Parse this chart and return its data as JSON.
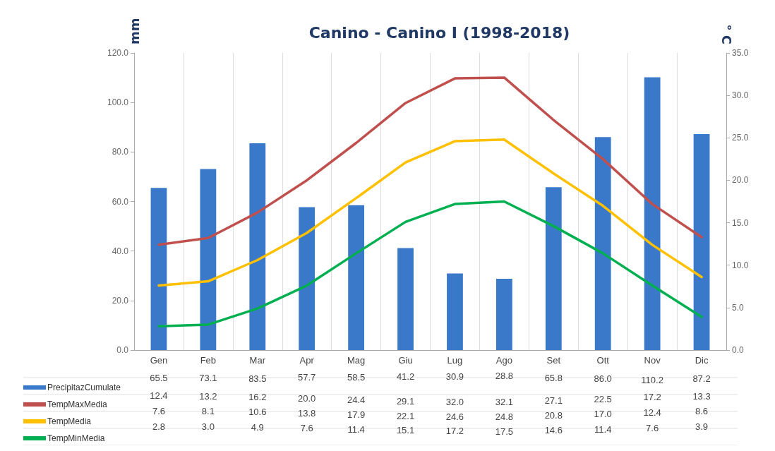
{
  "chart_data": {
    "type": "bar",
    "title": "Canino - Canino I (1998-2018)",
    "ylabel": "mm",
    "y2label": "° C",
    "categories": [
      "Gen",
      "Feb",
      "Mar",
      "Apr",
      "Mag",
      "Giu",
      "Lug",
      "Ago",
      "Set",
      "Ott",
      "Nov",
      "Dic"
    ],
    "series": [
      {
        "name": "PrecipitazCumulate",
        "color": "#3a78c9",
        "values": [
          65.5,
          73.1,
          83.5,
          57.7,
          58.5,
          41.2,
          30.9,
          28.8,
          65.8,
          86.0,
          110.2,
          87.2
        ],
        "value_labels": [
          "65.5",
          "73.1",
          "83.5",
          "57.7",
          "58.5",
          "41.2",
          "30.9",
          "28.8",
          "65.8",
          "86.0",
          "110.2",
          "87.2"
        ]
      },
      {
        "name": "TempMaxMedia",
        "type": "line",
        "axis": "y2",
        "color": "#c0504d",
        "values": [
          12.4,
          13.2,
          16.2,
          20.0,
          24.4,
          29.1,
          32.0,
          32.1,
          27.1,
          22.5,
          17.2,
          13.3
        ],
        "value_labels": [
          "12.4",
          "13.2",
          "16.2",
          "20.0",
          "24.4",
          "29.1",
          "32.0",
          "32.1",
          "27.1",
          "22.5",
          "17.2",
          "13.3"
        ]
      },
      {
        "name": "TempMedia",
        "type": "line",
        "axis": "y2",
        "color": "#ffc000",
        "values": [
          7.6,
          8.1,
          10.6,
          13.8,
          17.9,
          22.1,
          24.6,
          24.8,
          20.8,
          17.0,
          12.4,
          8.6
        ],
        "value_labels": [
          "7.6",
          "8.1",
          "10.6",
          "13.8",
          "17.9",
          "22.1",
          "24.6",
          "24.8",
          "20.8",
          "17.0",
          "12.4",
          "8.6"
        ]
      },
      {
        "name": "TempMinMedia",
        "type": "line",
        "axis": "y2",
        "color": "#00b050",
        "values": [
          2.8,
          3.0,
          4.9,
          7.6,
          11.4,
          15.1,
          17.2,
          17.5,
          14.6,
          11.4,
          7.6,
          3.9
        ],
        "value_labels": [
          "2.8",
          "3.0",
          "4.9",
          "7.6",
          "11.4",
          "15.1",
          "17.2",
          "17.5",
          "14.6",
          "11.4",
          "7.6",
          "3.9"
        ]
      }
    ],
    "ylim": [
      0,
      120
    ],
    "yticks": [
      {
        "value": 0,
        "label": "0.0"
      },
      {
        "value": 20,
        "label": "20.0"
      },
      {
        "value": 40,
        "label": "40.0"
      },
      {
        "value": 60,
        "label": "60.0"
      },
      {
        "value": 80,
        "label": "80.0"
      },
      {
        "value": 100,
        "label": "100.0"
      },
      {
        "value": 120,
        "label": "120.0"
      }
    ],
    "y2lim": [
      0,
      35
    ],
    "y2ticks": [
      {
        "value": 0,
        "label": "0.0"
      },
      {
        "value": 5,
        "label": "5.0"
      },
      {
        "value": 10,
        "label": "10.0"
      },
      {
        "value": 15,
        "label": "15.0"
      },
      {
        "value": 20,
        "label": "20.0"
      },
      {
        "value": 25,
        "label": "25.0"
      },
      {
        "value": 30,
        "label": "30.0"
      },
      {
        "value": 35,
        "label": "35.0"
      }
    ],
    "grid": "x",
    "legend": "bottom left",
    "marker": "none",
    "line_style": "solid"
  }
}
